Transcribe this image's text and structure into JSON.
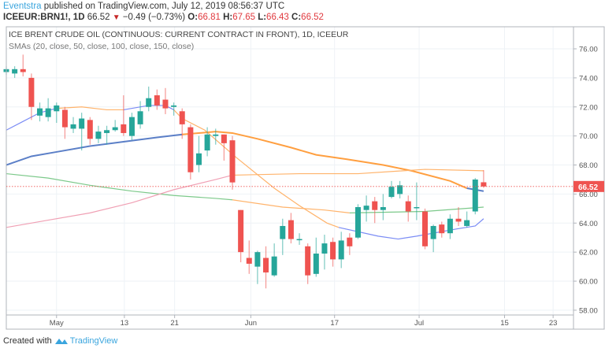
{
  "header": {
    "author": "Eventstra",
    "published": "published on TradingView.com, July 12, 2019 08:56:37 UTC",
    "symbol": "ICEEUR:BRN1!, 1D",
    "last": "66.52",
    "change": "−0.49 (−0.73%)",
    "o_label": "O:",
    "o": "66.81",
    "h_label": "H:",
    "h": "67.65",
    "l_label": "L:",
    "l": "66.43",
    "c_label": "C:",
    "c": "66.52"
  },
  "chart_title": "ICE BRENT CRUDE OIL (CONTINUOUS: CURRENT CONTRACT IN FRONT), 1D, ICEEUR",
  "indicator": "SMAs (20, close, 50, close, 100, close, 150, close)",
  "footer": {
    "created_with": "Created with",
    "brand": "TradingView"
  },
  "colors": {
    "up": "#26a69a",
    "down": "#ef5350",
    "grid": "#eef2f6",
    "last_price": "#ef5350"
  },
  "chart_data": {
    "type": "candlestick",
    "ylim": [
      57.5,
      77
    ],
    "yticks": [
      "58.00",
      "60.00",
      "62.00",
      "64.00",
      "66.00",
      "68.00",
      "70.00",
      "72.00",
      "74.00",
      "76.00"
    ],
    "xticks": [
      {
        "label": "May",
        "i": 6
      },
      {
        "label": "13",
        "i": 14.1
      },
      {
        "label": "21",
        "i": 20.1
      },
      {
        "label": "Jun",
        "i": 29.2
      },
      {
        "label": "17",
        "i": 39.2
      },
      {
        "label": "Jul",
        "i": 49.3
      },
      {
        "label": "15",
        "i": 59.5
      },
      {
        "label": "23",
        "i": 65.3
      }
    ],
    "last_price": "66.52",
    "candles": [
      [
        74.4,
        74.8,
        74.2,
        74.6
      ],
      [
        74.3,
        74.8,
        74.0,
        74.6
      ],
      [
        74.6,
        75.6,
        74.1,
        74.4
      ],
      [
        74.0,
        74.3,
        71.1,
        72.0
      ],
      [
        71.4,
        72.3,
        71.0,
        71.9
      ],
      [
        71.3,
        72.6,
        71.0,
        71.9
      ],
      [
        71.7,
        72.3,
        70.9,
        72.1
      ],
      [
        71.8,
        72.0,
        69.8,
        70.6
      ],
      [
        70.5,
        71.3,
        70.2,
        70.8
      ],
      [
        70.5,
        71.6,
        69.0,
        71.2
      ],
      [
        71.1,
        71.3,
        69.4,
        69.8
      ],
      [
        69.8,
        70.7,
        69.5,
        70.3
      ],
      [
        70.2,
        70.7,
        69.4,
        70.4
      ],
      [
        70.4,
        71.1,
        70.3,
        70.6
      ],
      [
        70.8,
        72.8,
        70.0,
        70.2
      ],
      [
        70.0,
        71.6,
        69.7,
        71.3
      ],
      [
        70.8,
        72.4,
        70.5,
        71.7
      ],
      [
        72.0,
        73.4,
        71.7,
        72.6
      ],
      [
        72.8,
        73.2,
        71.8,
        72.1
      ],
      [
        72.5,
        73.3,
        71.5,
        71.9
      ],
      [
        72.0,
        72.3,
        71.4,
        72.1
      ],
      [
        71.7,
        71.9,
        69.8,
        70.8
      ],
      [
        70.6,
        70.8,
        67.0,
        67.5
      ],
      [
        68.0,
        70.0,
        67.5,
        68.8
      ],
      [
        69.0,
        70.6,
        68.6,
        70.1
      ],
      [
        70.0,
        70.5,
        69.4,
        70.1
      ],
      [
        70.1,
        70.1,
        68.3,
        69.5
      ],
      [
        69.7,
        70.0,
        66.3,
        66.8
      ],
      [
        64.9,
        64.9,
        61.3,
        62.0
      ],
      [
        61.6,
        62.8,
        60.5,
        61.2
      ],
      [
        61.0,
        62.1,
        59.8,
        62.0
      ],
      [
        61.6,
        62.4,
        59.5,
        60.6
      ],
      [
        60.4,
        62.6,
        60.3,
        61.7
      ],
      [
        62.9,
        64.3,
        61.8,
        63.8
      ],
      [
        64.2,
        64.7,
        62.6,
        62.9
      ],
      [
        62.9,
        63.3,
        62.5,
        62.9
      ],
      [
        62.4,
        62.6,
        59.8,
        60.4
      ],
      [
        60.5,
        63.0,
        60.3,
        61.9
      ],
      [
        61.9,
        63.2,
        60.8,
        62.6
      ],
      [
        62.7,
        63.0,
        61.0,
        61.5
      ],
      [
        61.5,
        63.4,
        60.9,
        62.8
      ],
      [
        63.0,
        63.3,
        61.8,
        62.4
      ],
      [
        63.0,
        65.3,
        62.9,
        65.1
      ],
      [
        64.9,
        65.9,
        64.1,
        65.2
      ],
      [
        65.5,
        65.8,
        64.0,
        64.9
      ],
      [
        64.9,
        66.0,
        64.2,
        65.1
      ],
      [
        65.8,
        66.9,
        65.7,
        66.5
      ],
      [
        66.0,
        66.9,
        65.7,
        66.6
      ],
      [
        65.5,
        65.9,
        64.1,
        64.8
      ],
      [
        65.1,
        66.8,
        64.2,
        65.1
      ],
      [
        64.8,
        65.0,
        62.2,
        62.4
      ],
      [
        62.9,
        63.9,
        62.0,
        63.8
      ],
      [
        63.9,
        64.1,
        63.0,
        63.3
      ],
      [
        63.3,
        64.6,
        62.9,
        64.3
      ],
      [
        64.3,
        65.1,
        63.8,
        64.1
      ],
      [
        63.8,
        64.8,
        63.7,
        64.2
      ],
      [
        64.8,
        67.1,
        64.6,
        67.0
      ],
      [
        66.81,
        67.65,
        66.43,
        66.52
      ]
    ],
    "sma_segments": [
      {
        "name": "sma20",
        "color": "#7b8cf5",
        "points": [
          [
            0,
            70.4
          ],
          [
            2,
            71.0
          ],
          [
            4,
            71.6
          ],
          [
            6,
            71.9
          ]
        ]
      },
      {
        "name": "sma20",
        "color": "#ffb36b",
        "points": [
          [
            6,
            71.9
          ],
          [
            9,
            72.0
          ],
          [
            12,
            71.8
          ],
          [
            14,
            71.8
          ]
        ]
      },
      {
        "name": "sma20",
        "color": "#7b8cf5",
        "points": [
          [
            14,
            71.8
          ],
          [
            17,
            72.1
          ],
          [
            19,
            72.1
          ],
          [
            20,
            71.8
          ]
        ]
      },
      {
        "name": "sma20",
        "color": "#ffb36b",
        "points": [
          [
            20,
            71.8
          ],
          [
            21,
            71.2
          ],
          [
            23.7,
            70.4
          ],
          [
            27.5,
            68.5
          ],
          [
            32,
            66.4
          ],
          [
            35,
            65.2
          ],
          [
            38.3,
            64.0
          ],
          [
            39.7,
            63.7
          ]
        ]
      },
      {
        "name": "sma20",
        "color": "#7b8cf5",
        "points": [
          [
            39.7,
            63.7
          ],
          [
            44.4,
            63.1
          ],
          [
            46.8,
            62.9
          ],
          [
            49,
            63.1
          ],
          [
            53.8,
            63.6
          ],
          [
            56,
            63.8
          ],
          [
            57,
            64.3
          ]
        ]
      },
      {
        "name": "sma50",
        "color": "#5b7fc7",
        "points": [
          [
            0,
            68.0
          ],
          [
            3,
            68.6
          ],
          [
            6,
            68.9
          ],
          [
            10,
            69.3
          ],
          [
            14,
            69.6
          ],
          [
            18,
            69.9
          ],
          [
            21,
            70.1
          ]
        ]
      },
      {
        "name": "sma50",
        "color": "#ff9f40",
        "points": [
          [
            21,
            70.1
          ],
          [
            25,
            70.3
          ],
          [
            27,
            70.2
          ],
          [
            30,
            69.8
          ],
          [
            34,
            69.2
          ],
          [
            37,
            68.7
          ],
          [
            40.6,
            68.4
          ],
          [
            45,
            68.0
          ],
          [
            48.4,
            67.6
          ],
          [
            53,
            66.9
          ],
          [
            55,
            66.4
          ]
        ]
      },
      {
        "name": "sma50",
        "color": "#5b7fc7",
        "points": [
          [
            55,
            66.4
          ],
          [
            57,
            66.2
          ]
        ]
      },
      {
        "name": "sma100",
        "color": "#7cc98a",
        "points": [
          [
            0,
            67.4
          ],
          [
            5,
            67.1
          ],
          [
            10,
            66.6
          ],
          [
            15,
            66.2
          ],
          [
            20,
            65.9
          ],
          [
            25,
            65.7
          ],
          [
            27,
            65.6
          ]
        ]
      },
      {
        "name": "sma100",
        "color": "#ffb36b",
        "points": [
          [
            27,
            65.6
          ],
          [
            33,
            65.1
          ],
          [
            38,
            64.9
          ],
          [
            41,
            64.7
          ]
        ]
      },
      {
        "name": "sma100",
        "color": "#7cc98a",
        "points": [
          [
            41,
            64.7
          ],
          [
            50,
            64.8
          ],
          [
            57,
            65.1
          ]
        ]
      },
      {
        "name": "sma150",
        "color": "#f0a0b4",
        "points": [
          [
            0,
            63.7
          ],
          [
            5,
            64.2
          ],
          [
            10,
            64.7
          ],
          [
            15,
            65.4
          ],
          [
            20,
            66.3
          ],
          [
            25,
            67.0
          ],
          [
            27,
            67.3
          ]
        ]
      },
      {
        "name": "sma150",
        "color": "#ffb36b",
        "points": [
          [
            27,
            67.3
          ],
          [
            35,
            67.4
          ],
          [
            42,
            67.4
          ],
          [
            50,
            67.7
          ],
          [
            57,
            67.6
          ]
        ]
      }
    ]
  }
}
